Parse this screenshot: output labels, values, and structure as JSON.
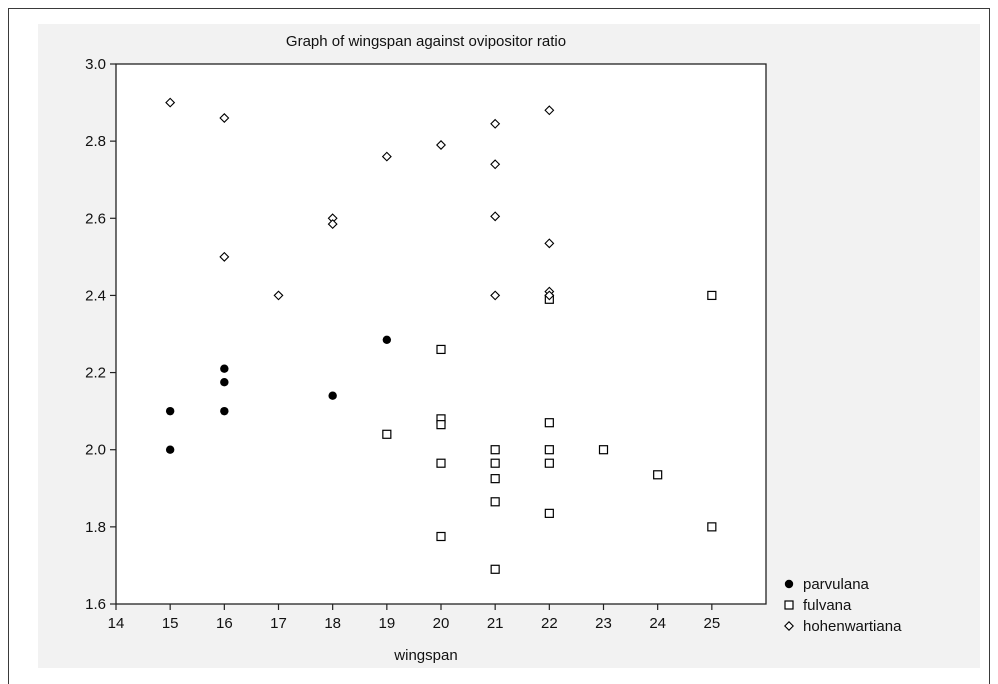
{
  "chart_data": {
    "type": "scatter",
    "title": "Graph of wingspan against ovipositor ratio",
    "xlabel": "wingspan",
    "ylabel": "",
    "xlim": [
      14,
      26
    ],
    "ylim": [
      1.6,
      3.0
    ],
    "xticks": [
      "14",
      "15",
      "16",
      "17",
      "18",
      "19",
      "20",
      "21",
      "22",
      "23",
      "24",
      "25"
    ],
    "yticks": [
      "1.6",
      "1.8",
      "2.0",
      "2.2",
      "2.4",
      "2.6",
      "2.8",
      "3.0"
    ],
    "grid": false,
    "legend_position": "bottom-right outside",
    "series": [
      {
        "name": "parvulana",
        "marker": "filled-circle",
        "color": "#000000",
        "points": [
          [
            15,
            2.0
          ],
          [
            15,
            2.1
          ],
          [
            16,
            2.1
          ],
          [
            16,
            2.175
          ],
          [
            16,
            2.21
          ],
          [
            18,
            2.14
          ],
          [
            19,
            2.285
          ]
        ]
      },
      {
        "name": "fulvana",
        "marker": "open-square",
        "color": "#000000",
        "points": [
          [
            19,
            2.04
          ],
          [
            20,
            2.26
          ],
          [
            20,
            2.08
          ],
          [
            20,
            2.065
          ],
          [
            20,
            1.965
          ],
          [
            20,
            1.775
          ],
          [
            21,
            2.0
          ],
          [
            21,
            1.965
          ],
          [
            21,
            1.925
          ],
          [
            21,
            1.865
          ],
          [
            21,
            1.69
          ],
          [
            22,
            2.39
          ],
          [
            22,
            2.07
          ],
          [
            22,
            2.0
          ],
          [
            22,
            1.965
          ],
          [
            22,
            1.835
          ],
          [
            23,
            2.0
          ],
          [
            24,
            1.935
          ],
          [
            25,
            2.4
          ],
          [
            25,
            1.8
          ]
        ]
      },
      {
        "name": "hohenwartiana",
        "marker": "open-diamond",
        "color": "#000000",
        "points": [
          [
            15,
            2.9
          ],
          [
            16,
            2.86
          ],
          [
            16,
            2.5
          ],
          [
            17,
            2.4
          ],
          [
            18,
            2.6
          ],
          [
            18,
            2.585
          ],
          [
            19,
            2.76
          ],
          [
            20,
            2.79
          ],
          [
            21,
            2.845
          ],
          [
            21,
            2.74
          ],
          [
            21,
            2.605
          ],
          [
            21,
            2.4
          ],
          [
            22,
            2.88
          ],
          [
            22,
            2.535
          ],
          [
            22,
            2.41
          ],
          [
            22,
            2.4
          ]
        ]
      }
    ]
  }
}
